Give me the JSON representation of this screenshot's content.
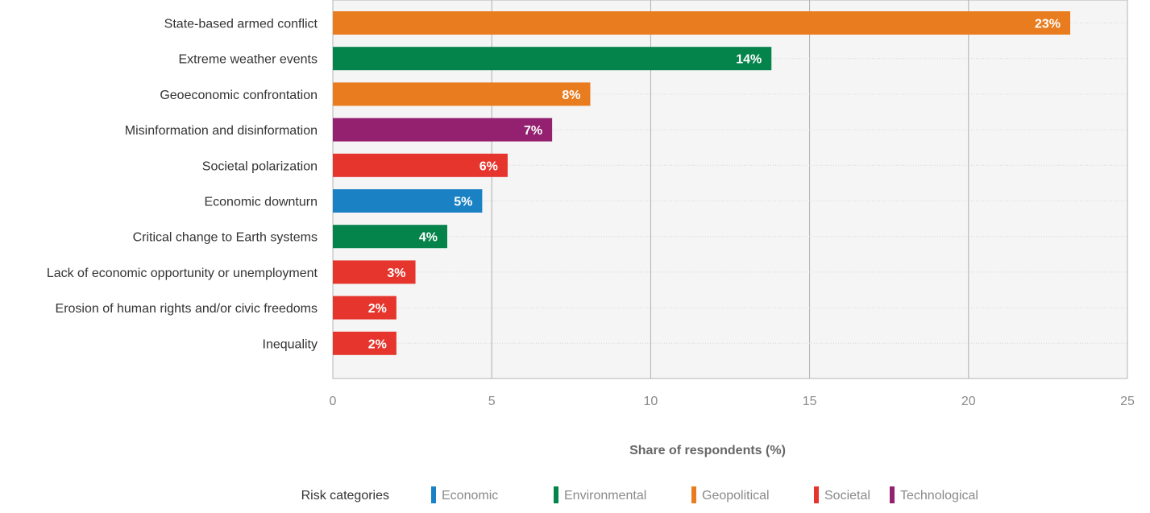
{
  "chart_data": {
    "type": "bar",
    "orientation": "horizontal",
    "categories": [
      "State-based armed conflict",
      "Extreme weather events",
      "Geoeconomic confrontation",
      "Misinformation and disinformation",
      "Societal polarization",
      "Economic downturn",
      "Critical change to Earth systems",
      "Lack of economic opportunity or unemployment",
      "Erosion of human rights and/or civic freedoms",
      "Inequality"
    ],
    "values": [
      23.2,
      13.8,
      8.1,
      6.9,
      5.5,
      4.7,
      3.6,
      2.6,
      2.0,
      2.0
    ],
    "data_labels": [
      "23%",
      "14%",
      "8%",
      "7%",
      "6%",
      "5%",
      "4%",
      "3%",
      "2%",
      "2%"
    ],
    "bar_categories": [
      "Geopolitical",
      "Environmental",
      "Geopolitical",
      "Technological",
      "Societal",
      "Economic",
      "Environmental",
      "Societal",
      "Societal",
      "Societal"
    ],
    "xlabel": "Share of respondents (%)",
    "xlim": [
      0,
      25
    ],
    "xticks": [
      0,
      5,
      10,
      15,
      20,
      25
    ],
    "grid": true,
    "legend": {
      "title": "Risk categories",
      "placement": "bottom",
      "items": [
        {
          "name": "Economic",
          "color": "#1a82c4"
        },
        {
          "name": "Environmental",
          "color": "#04834a"
        },
        {
          "name": "Geopolitical",
          "color": "#e87c1e"
        },
        {
          "name": "Societal",
          "color": "#e5352c"
        },
        {
          "name": "Technological",
          "color": "#93216f"
        }
      ]
    }
  }
}
